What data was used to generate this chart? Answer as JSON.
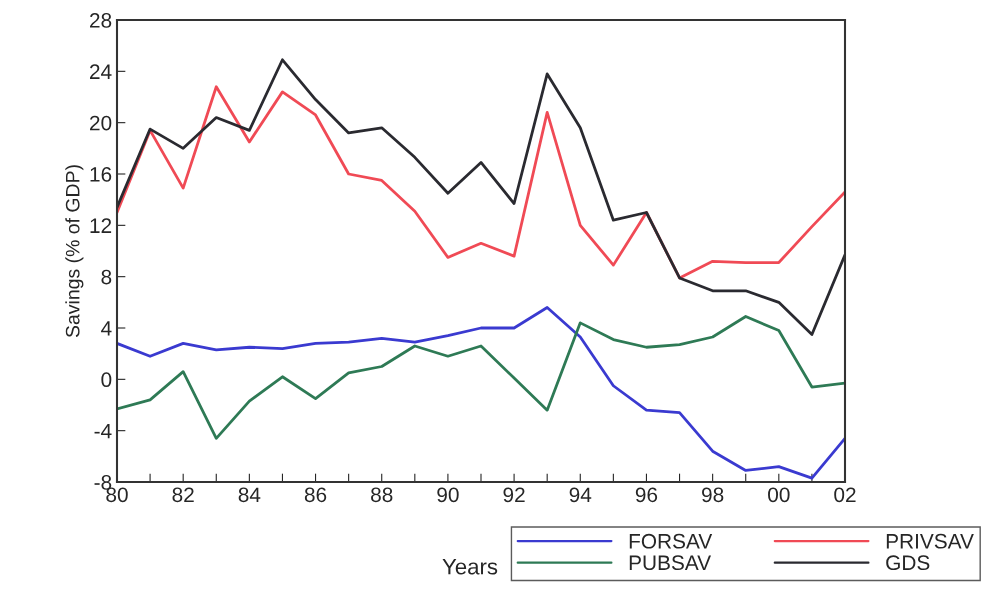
{
  "chart_data": {
    "type": "line",
    "xlabel": "Years",
    "ylabel": "Savings (% of GDP)",
    "x": [
      1980,
      1981,
      1982,
      1983,
      1984,
      1985,
      1986,
      1987,
      1988,
      1989,
      1990,
      1991,
      1992,
      1993,
      1994,
      1995,
      1996,
      1997,
      1998,
      1999,
      2000,
      2001,
      2002
    ],
    "series": [
      {
        "name": "FORSAV",
        "color": "#3a3ad0",
        "values": [
          2.8,
          1.8,
          2.8,
          2.3,
          2.5,
          2.4,
          2.8,
          2.9,
          3.2,
          2.9,
          3.4,
          4.0,
          4.0,
          5.6,
          3.3,
          -0.5,
          -2.4,
          -2.6,
          -5.6,
          -7.1,
          -6.8,
          -7.7,
          -4.6
        ]
      },
      {
        "name": "PUBSAV",
        "color": "#2e7a55",
        "values": [
          -2.3,
          -1.6,
          0.6,
          -4.6,
          -1.7,
          0.2,
          -1.5,
          0.5,
          1.0,
          2.6,
          1.8,
          2.6,
          0.1,
          -2.4,
          4.4,
          3.1,
          2.5,
          2.7,
          3.3,
          4.9,
          3.8,
          -0.6,
          -0.3
        ]
      },
      {
        "name": "PRIVSAV",
        "color": "#f04a55",
        "values": [
          13.0,
          19.4,
          14.9,
          22.8,
          18.5,
          22.4,
          20.6,
          16.0,
          15.5,
          13.1,
          9.5,
          10.6,
          9.6,
          20.8,
          12.0,
          8.9,
          13.0,
          7.9,
          9.2,
          9.1,
          9.1,
          11.9,
          14.6
        ]
      },
      {
        "name": "GDS",
        "color": "#2a2a30",
        "values": [
          13.4,
          19.5,
          18.0,
          20.4,
          19.4,
          24.9,
          21.8,
          19.2,
          19.6,
          17.3,
          14.5,
          16.9,
          13.7,
          23.8,
          19.6,
          12.4,
          13.0,
          7.9,
          6.9,
          6.9,
          6.0,
          3.5,
          9.7
        ]
      }
    ],
    "xlim": [
      1980,
      2002
    ],
    "xticks": [
      {
        "value": 1980,
        "label": "80"
      },
      {
        "value": 1981,
        "label": null
      },
      {
        "value": 1982,
        "label": "82"
      },
      {
        "value": 1983,
        "label": null
      },
      {
        "value": 1984,
        "label": "84"
      },
      {
        "value": 1985,
        "label": null
      },
      {
        "value": 1986,
        "label": "86"
      },
      {
        "value": 1987,
        "label": null
      },
      {
        "value": 1988,
        "label": "88"
      },
      {
        "value": 1989,
        "label": null
      },
      {
        "value": 1990,
        "label": "90"
      },
      {
        "value": 1991,
        "label": null
      },
      {
        "value": 1992,
        "label": "92"
      },
      {
        "value": 1993,
        "label": null
      },
      {
        "value": 1994,
        "label": "94"
      },
      {
        "value": 1995,
        "label": null
      },
      {
        "value": 1996,
        "label": "96"
      },
      {
        "value": 1997,
        "label": null
      },
      {
        "value": 1998,
        "label": "98"
      },
      {
        "value": 1999,
        "label": null
      },
      {
        "value": 2000,
        "label": "00"
      },
      {
        "value": 2001,
        "label": null
      },
      {
        "value": 2002,
        "label": "02"
      }
    ],
    "ylim": [
      -8,
      28
    ],
    "yticks": [
      -8,
      -4,
      0,
      4,
      8,
      12,
      16,
      20,
      24,
      28
    ],
    "grid": false,
    "legend": "bottom right",
    "marker": "none",
    "line_style": "solid"
  }
}
